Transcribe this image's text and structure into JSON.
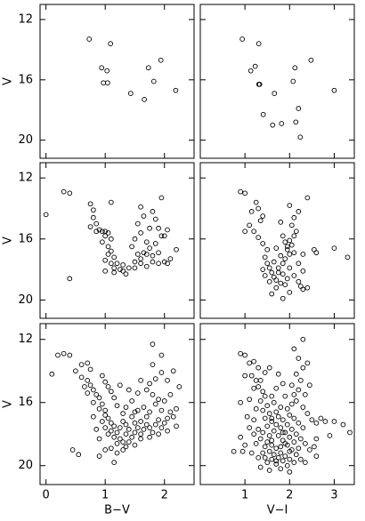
{
  "chart_data": [
    {
      "type": "scatter",
      "xlim": [
        -0.1,
        2.5
      ],
      "ylim": [
        21.2,
        11
      ],
      "xticks": [
        0,
        1,
        2
      ],
      "yticks": [
        12,
        16,
        20
      ],
      "ylabel": "V",
      "color": "#000000",
      "x": [
        0.73,
        1.09,
        0.94,
        1.03,
        0.97,
        1.04,
        1.73,
        1.94,
        1.82,
        1.43,
        1.66,
        2.19
      ],
      "y": [
        13.3,
        13.6,
        15.2,
        15.4,
        16.2,
        16.2,
        15.2,
        14.7,
        16.1,
        16.9,
        17.3,
        16.7
      ]
    },
    {
      "type": "scatter",
      "xlim": [
        0,
        3.45
      ],
      "ylim": [
        21.2,
        11
      ],
      "xticks": [
        1,
        2,
        3
      ],
      "yticks": [
        12,
        16,
        20
      ],
      "color": "#000000",
      "x": [
        0.94,
        1.31,
        1.23,
        1.13,
        1.31,
        1.33,
        2.12,
        2.48,
        2.08,
        1.66,
        1.41,
        2.2,
        1.82,
        1.62,
        2.14,
        2.24,
        3.0
      ],
      "y": [
        13.3,
        13.6,
        15.1,
        15.4,
        16.3,
        16.3,
        15.2,
        14.7,
        16.1,
        16.9,
        18.3,
        17.9,
        18.9,
        19.0,
        18.8,
        19.8,
        16.7
      ]
    },
    {
      "type": "scatter",
      "xlim": [
        -0.1,
        2.5
      ],
      "ylim": [
        21.2,
        11
      ],
      "xticks": [
        0,
        1,
        2
      ],
      "yticks": [
        12,
        16,
        20
      ],
      "ylabel": "V",
      "color": "#000000",
      "x": [
        0.3,
        0.4,
        0,
        1.1,
        0.75,
        0.8,
        0.8,
        0.85,
        0.75,
        0.9,
        0.85,
        0.95,
        1.0,
        1.05,
        1.0,
        1.1,
        0.95,
        1.05,
        1.1,
        1.05,
        1.15,
        1.0,
        1.1,
        1.2,
        1.3,
        1.15,
        1.25,
        1.15,
        1.3,
        1.4,
        1.5,
        1.6,
        1.7,
        1.55,
        1.8,
        1.9,
        1.65,
        1.75,
        1.85,
        1.6,
        1.7,
        1.8,
        1.9,
        2.0,
        2.1,
        2.05,
        2.2,
        1.95,
        1.75,
        1.85,
        1.9,
        2.0,
        1.8,
        1.95,
        1.6,
        1.65,
        1.55,
        1.6,
        1.5,
        1.45,
        1.5,
        1.35,
        0.4,
        1.0,
        2.05,
        1.7
      ],
      "y": [
        12.9,
        13.0,
        14.4,
        13.6,
        13.7,
        14.1,
        14.6,
        15.0,
        15.2,
        15.4,
        15.5,
        15.5,
        15.5,
        15.6,
        15.8,
        16.0,
        16.2,
        16.5,
        16.8,
        17.0,
        17.2,
        17.4,
        17.6,
        17.6,
        17.7,
        17.9,
        18.0,
        18.2,
        18.1,
        17.9,
        17.5,
        17.3,
        17.0,
        17.0,
        17.1,
        16.9,
        16.9,
        16.6,
        16.3,
        17.6,
        17.8,
        17.5,
        17.6,
        17.5,
        17.3,
        17.6,
        16.7,
        15.8,
        15.3,
        14.7,
        15.3,
        15.8,
        14.2,
        13.3,
        13.9,
        14.5,
        15.0,
        15.6,
        16.0,
        16.5,
        17.9,
        18.3,
        18.6,
        18.1,
        15.4,
        16.2
      ]
    },
    {
      "type": "scatter",
      "xlim": [
        0,
        3.45
      ],
      "ylim": [
        21.2,
        11
      ],
      "xticks": [
        1,
        2,
        3
      ],
      "yticks": [
        12,
        16,
        20
      ],
      "color": "#000000",
      "x": [
        0.9,
        1.0,
        1.25,
        1.15,
        1.3,
        1.35,
        1.4,
        1.1,
        1.2,
        1.0,
        1.3,
        1.4,
        1.5,
        1.45,
        1.5,
        1.55,
        1.6,
        1.45,
        1.65,
        1.7,
        1.55,
        1.8,
        1.9,
        1.7,
        1.95,
        1.85,
        1.75,
        1.85,
        1.9,
        2.0,
        1.95,
        2.05,
        2.0,
        2.1,
        2.15,
        2.05,
        2.1,
        2.2,
        2.0,
        2.4,
        1.8,
        1.85,
        1.95,
        1.8,
        2.0,
        2.1,
        2.2,
        2.3,
        2.0,
        1.6,
        1.85,
        2.2,
        2.3,
        2.55,
        2.6,
        3.0,
        3.3,
        2.1,
        1.9,
        1.7,
        1.65,
        1.4,
        1.75,
        2.3,
        2.25,
        2.4
      ],
      "y": [
        12.9,
        13.0,
        13.6,
        14.2,
        14.0,
        14.8,
        14.5,
        15.1,
        15.5,
        15.5,
        15.9,
        16.3,
        16.7,
        17.2,
        17.6,
        17.9,
        18.2,
        18.4,
        18.5,
        18.7,
        18.8,
        18.9,
        19.0,
        19.2,
        18.6,
        18.3,
        17.9,
        17.6,
        17.3,
        17.0,
        16.7,
        16.4,
        16.1,
        15.8,
        15.5,
        15.1,
        14.6,
        14.2,
        13.8,
        13.3,
        14.9,
        15.8,
        16.5,
        17.1,
        17.9,
        18.4,
        18.8,
        19.3,
        19.5,
        19.6,
        19.9,
        17.6,
        17.0,
        16.7,
        16.9,
        16.6,
        17.2,
        16.9,
        16.2,
        16.6,
        17.5,
        18.0,
        18.2,
        18.1,
        19.1,
        19.2
      ]
    },
    {
      "type": "scatter",
      "xlim": [
        -0.1,
        2.5
      ],
      "ylim": [
        21.2,
        11
      ],
      "xticks": [
        0,
        1,
        2
      ],
      "yticks": [
        12,
        16,
        20
      ],
      "ylabel": "V",
      "xlabel": "B−V",
      "color": "#000000",
      "x": [
        0.1,
        0.3,
        0.4,
        0.6,
        0.7,
        0.75,
        0.5,
        0.6,
        0.7,
        0.75,
        0.8,
        0.7,
        0.85,
        0.9,
        0.8,
        0.95,
        0.9,
        1.0,
        1.0,
        1.05,
        0.95,
        1.1,
        1.0,
        1.15,
        1.1,
        1.2,
        1.05,
        1.15,
        1.25,
        1.2,
        1.3,
        1.1,
        1.35,
        1.0,
        0.9,
        0.85,
        0.8,
        0.9,
        0.45,
        1.25,
        1.3,
        1.35,
        1.4,
        1.45,
        1.5,
        1.55,
        1.6,
        1.65,
        1.7,
        1.75,
        1.8,
        1.85,
        1.9,
        1.7,
        1.6,
        1.5,
        1.95,
        2.0,
        2.05,
        2.1,
        2.15,
        2.2,
        1.95,
        1.85,
        1.9,
        2.0,
        1.8,
        1.7,
        1.75,
        1.85,
        1.95,
        1.8,
        1.95,
        1.8,
        1.6,
        1.55,
        1.45,
        1.35,
        1.3,
        1.2,
        1.15,
        1.1,
        1.05,
        1.0,
        0.95,
        1.25,
        1.4,
        1.65,
        1.55,
        1.75,
        2.1,
        2.25,
        2.05,
        2.15,
        1.6,
        1.4,
        1.75,
        1.9,
        2.05,
        2.2,
        1.3,
        1.5,
        1.2,
        1.15,
        0.55,
        0.2,
        0.65,
        1.45,
        1.35,
        1.5
      ],
      "y": [
        14.2,
        12.9,
        13.0,
        13.6,
        13.5,
        13.9,
        14.0,
        14.4,
        14.6,
        14.9,
        15.2,
        15.4,
        15.5,
        15.7,
        16.0,
        16.1,
        16.4,
        16.5,
        16.8,
        17.0,
        17.2,
        17.3,
        17.6,
        17.5,
        17.8,
        17.9,
        18.0,
        18.2,
        18.3,
        18.6,
        18.5,
        18.9,
        18.8,
        19.0,
        18.3,
        17.7,
        16.9,
        19.4,
        19.0,
        17.6,
        17.2,
        18.0,
        17.7,
        18.2,
        17.9,
        17.6,
        18.0,
        17.7,
        17.4,
        17.6,
        17.9,
        17.4,
        17.1,
        16.9,
        17.2,
        17.3,
        17.6,
        17.3,
        17.0,
        16.6,
        16.9,
        16.4,
        16.5,
        16.1,
        15.8,
        15.9,
        15.5,
        15.2,
        14.8,
        14.5,
        14.1,
        13.6,
        13.0,
        12.3,
        14.6,
        15.4,
        15.9,
        16.3,
        16.7,
        16.2,
        15.7,
        15.3,
        15.0,
        14.7,
        14.3,
        14.9,
        15.2,
        16.3,
        16.5,
        16.6,
        15.5,
        15.0,
        14.6,
        14.0,
        18.3,
        18.5,
        18.2,
        18.0,
        17.8,
        17.5,
        19.0,
        18.7,
        19.2,
        19.8,
        19.3,
        13.0,
        15.0,
        16.9,
        17.4,
        16.6
      ]
    },
    {
      "type": "scatter",
      "xlim": [
        0,
        3.45
      ],
      "ylim": [
        21.2,
        11
      ],
      "xticks": [
        1,
        2,
        3
      ],
      "yticks": [
        12,
        16,
        20
      ],
      "xlabel": "V−I",
      "color": "#000000",
      "x": [
        0.9,
        1.0,
        1.1,
        1.2,
        1.3,
        1.0,
        1.15,
        1.25,
        1.35,
        1.3,
        1.4,
        1.2,
        1.45,
        1.35,
        1.5,
        1.4,
        1.55,
        1.45,
        1.6,
        1.5,
        1.3,
        1.4,
        1.2,
        1.55,
        1.35,
        1.5,
        1.25,
        1.45,
        1.6,
        1.7,
        1.55,
        1.4,
        1.65,
        1.8,
        1.75,
        1.9,
        1.6,
        1.85,
        2.0,
        1.7,
        1.95,
        2.1,
        1.5,
        1.3,
        1.15,
        1.0,
        0.95,
        0.9,
        1.1,
        1.65,
        1.75,
        1.85,
        1.95,
        2.05,
        2.15,
        2.25,
        2.35,
        2.2,
        2.1,
        2.0,
        1.9,
        1.8,
        1.7,
        1.85,
        1.95,
        2.05,
        2.15,
        2.25,
        2.35,
        2.45,
        2.3,
        2.2,
        2.1,
        2.0,
        1.95,
        2.05,
        2.15,
        2.1,
        2.2,
        2.05,
        2.25,
        2.15,
        2.3,
        2.2,
        2.1,
        2.3,
        2.4,
        2.45,
        2.35,
        2.3,
        2.4,
        2.5,
        2.6,
        2.7,
        2.8,
        3.0,
        3.2,
        3.35,
        2.9,
        2.6,
        2.55,
        2.6,
        1.65,
        1.7,
        1.8,
        1.6,
        1.7,
        1.85,
        1.9,
        1.75,
        1.55,
        1.45,
        1.1,
        1.25,
        1.2,
        1.05,
        0.9,
        0.75,
        1.35,
        1.55,
        1.8,
        2.0,
        1.6,
        1.75,
        1.9,
        1.6,
        1.8,
        2.0,
        1.45,
        1.7,
        1.85
      ],
      "y": [
        12.9,
        13.0,
        13.5,
        13.4,
        13.8,
        14.3,
        14.3,
        14.6,
        14.6,
        15.0,
        15.3,
        15.1,
        15.6,
        15.9,
        16.2,
        16.5,
        16.7,
        17.0,
        17.2,
        17.5,
        17.7,
        17.9,
        18.0,
        18.1,
        18.3,
        18.5,
        18.6,
        18.8,
        18.7,
        18.9,
        19.1,
        19.2,
        19.3,
        19.2,
        19.5,
        19.4,
        19.6,
        19.7,
        19.6,
        19.9,
        20.0,
        19.8,
        19.8,
        19.5,
        19.2,
        18.7,
        19.1,
        18.2,
        17.6,
        17.8,
        18.1,
        18.4,
        18.7,
        19.0,
        19.3,
        19.6,
        19.8,
        18.9,
        18.5,
        18.2,
        17.9,
        17.6,
        17.4,
        17.1,
        17.4,
        17.7,
        18.0,
        18.3,
        18.6,
        19.0,
        17.6,
        17.3,
        17.0,
        16.8,
        16.4,
        16.1,
        15.9,
        15.5,
        15.2,
        14.9,
        14.6,
        14.2,
        13.8,
        13.2,
        12.6,
        12.0,
        13.5,
        14.9,
        15.5,
        16.3,
        16.7,
        17.1,
        17.3,
        17.0,
        17.2,
        17.2,
        17.4,
        17.9,
        18.1,
        18.3,
        18.8,
        19.4,
        16.0,
        16.6,
        16.3,
        15.6,
        15.1,
        14.8,
        15.6,
        14.2,
        13.8,
        14.1,
        15.8,
        16.4,
        17.1,
        16.9,
        16.0,
        19.1,
        20.1,
        20.3,
        20.2,
        20.4,
        17.0,
        16.9,
        18.6,
        18.4,
        18.8,
        19.1,
        19.5,
        19.7,
        17.9
      ]
    }
  ]
}
